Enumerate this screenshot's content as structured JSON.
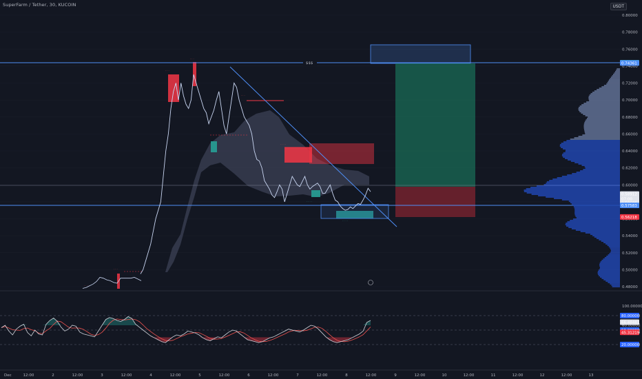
{
  "header": {
    "symbol_label": "SuperFarm / Tether, 30, KUCOIN",
    "currency_badge": "USDT"
  },
  "colors": {
    "background": "#131722",
    "grid": "#1e2230",
    "price_line": "#c9d6f2",
    "level_line": "#4f8ff7",
    "cloud": "#4a5068",
    "supply_zone": "#f23645",
    "demand_zone": "#26a69a",
    "target_zone": "#1a6b56",
    "stop_zone": "#7a2330",
    "volume_profile_upper": "#8fa3d6",
    "volume_profile_lower": "#2962ff",
    "oscillator": "#b2b5be",
    "signal": "#ef5350"
  },
  "chart_data": {
    "type": "line",
    "price_axis": {
      "ticks": [
        "0.80000",
        "0.78000",
        "0.76000",
        "0.74000",
        "0.72000",
        "0.70000",
        "0.68000",
        "0.66000",
        "0.64000",
        "0.62000",
        "0.60000",
        "0.58000",
        "0.56000",
        "0.54000",
        "0.52000",
        "0.50000",
        "0.48000"
      ],
      "ylim": [
        0.48,
        0.8
      ]
    },
    "price_tags": [
      {
        "label": "0.74395",
        "value": 0.74395,
        "color": "#26a69a"
      },
      {
        "label": "0.74361",
        "value": 0.74361,
        "color": "#4f8ff7"
      },
      {
        "label": "0.58912",
        "value": 0.58912,
        "color": "#e0e3eb",
        "dark_text": true
      },
      {
        "label": "07:00",
        "value": 0.5835,
        "color": "#e0e3eb",
        "dark_text": true
      },
      {
        "label": "0.58686",
        "value": 0.5785,
        "color": "#e0e3eb",
        "dark_text": true
      },
      {
        "label": "0.57583",
        "value": 0.57583,
        "color": "#4f8ff7"
      },
      {
        "label": "0.56218",
        "value": 0.56218,
        "color": "#f23645"
      }
    ],
    "level_label": "$$$",
    "time_axis": [
      "Dec",
      "12:00",
      "2",
      "12:00",
      "3",
      "12:00",
      "4",
      "12:00",
      "5",
      "12:00",
      "6",
      "12:00",
      "7",
      "12:00",
      "8",
      "12:00",
      "9",
      "12:00",
      "10",
      "12:00",
      "11",
      "12:00",
      "12",
      "12:00",
      "13"
    ],
    "oscillator_axis": {
      "ticks": [
        "100.00000",
        "80.00000",
        "66.48481",
        "60.00000",
        "50.00000",
        "45.31219",
        "20.00000"
      ],
      "ylim": [
        0,
        100
      ]
    },
    "oscillator_tags": [
      {
        "label": "80.00000",
        "value": 80,
        "color": "#2962ff"
      },
      {
        "label": "66.48481",
        "value": 66.5,
        "color": "#e0e3eb",
        "dark_text": true
      },
      {
        "label": "50.00000",
        "value": 50,
        "color": "#2962ff"
      },
      {
        "label": "45.31219",
        "value": 45.3,
        "color": "#f23645"
      },
      {
        "label": "20.00000",
        "value": 20,
        "color": "#2962ff"
      }
    ],
    "price_series": [
      [
        0.478,
        0.479,
        0.481,
        0.483,
        0.486,
        0.491,
        0.49,
        0.488,
        0.487,
        0.485,
        0.484,
        0.49,
        0.49,
        0.49,
        0.49,
        0.491,
        0.489,
        0.487
      ],
      [
        0.495,
        0.5,
        0.51,
        0.52,
        0.53,
        0.545,
        0.56,
        0.57,
        0.58,
        0.61,
        0.64,
        0.66,
        0.69,
        0.71,
        0.72,
        0.7,
        0.72,
        0.705,
        0.695,
        0.69,
        0.7,
        0.73,
        0.72,
        0.71,
        0.7,
        0.69,
        0.685,
        0.672,
        0.68,
        0.688,
        0.7,
        0.71,
        0.69,
        0.67,
        0.66,
        0.68,
        0.7,
        0.72,
        0.715,
        0.7,
        0.69,
        0.68,
        0.675,
        0.67,
        0.66,
        0.64,
        0.63,
        0.628,
        0.62,
        0.605,
        0.6,
        0.595,
        0.588,
        0.585,
        0.592,
        0.6,
        0.595,
        0.58,
        0.59,
        0.6,
        0.61,
        0.605,
        0.6,
        0.598,
        0.604,
        0.61,
        0.6,
        0.595,
        0.598,
        0.6,
        0.602,
        0.598,
        0.59,
        0.59,
        0.595,
        0.6,
        0.59,
        0.582,
        0.58,
        0.575,
        0.572,
        0.57,
        0.571,
        0.574,
        0.572,
        0.575,
        0.578,
        0.577,
        0.582,
        0.588,
        0.596,
        0.592
      ]
    ],
    "oscillator_series": [
      55,
      60,
      48,
      40,
      52,
      58,
      62,
      45,
      38,
      50,
      42,
      40,
      62,
      70,
      75,
      68,
      56,
      48,
      52,
      60,
      58,
      46,
      42,
      40,
      38,
      36,
      48,
      60,
      72,
      76,
      74,
      70,
      68,
      72,
      78,
      74,
      62,
      56,
      50,
      44,
      38,
      34,
      30,
      26,
      24,
      30,
      36,
      40,
      38,
      42,
      48,
      46,
      44,
      40,
      34,
      30,
      28,
      32,
      36,
      34,
      40,
      46,
      50,
      48,
      42,
      36,
      30,
      28,
      26,
      24,
      26,
      30,
      34,
      36,
      40,
      44,
      48,
      52,
      50,
      48,
      46,
      50,
      55,
      60,
      58,
      52,
      44,
      36,
      30,
      26,
      24,
      26,
      28,
      30,
      34,
      38,
      42,
      48,
      66,
      70
    ]
  }
}
